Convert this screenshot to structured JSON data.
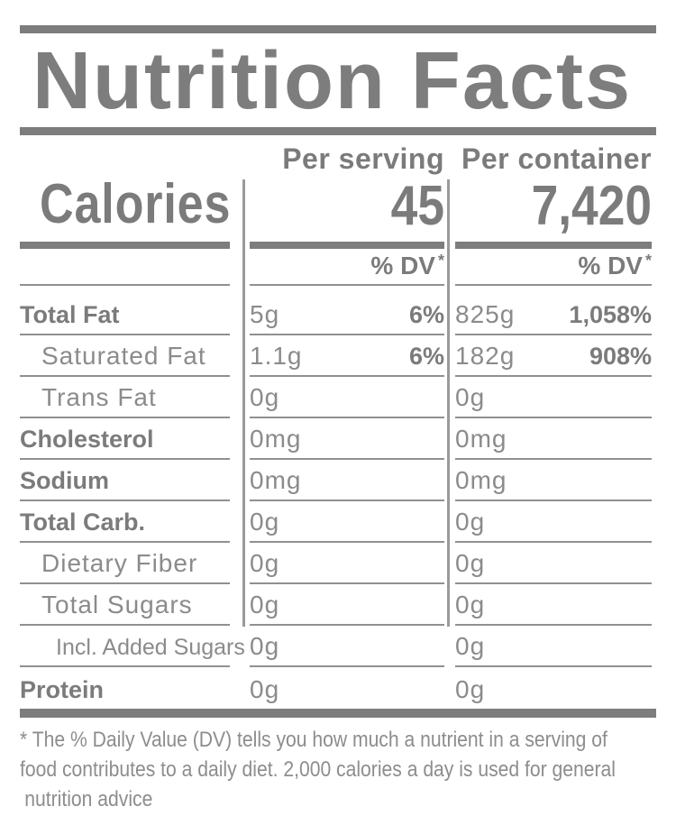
{
  "title": "Nutrition Facts",
  "header": {
    "per_serving": "Per serving",
    "per_container": "Per container"
  },
  "calories": {
    "label": "Calories",
    "per_serving": "45",
    "per_container": "7,420"
  },
  "dv": {
    "label": "% DV",
    "star": "*"
  },
  "rows": [
    {
      "name": "Total Fat",
      "serving_amount": "5g",
      "serving_dv": "6%",
      "container_amount": "825g",
      "container_dv": "1,058%"
    },
    {
      "name": "Saturated Fat",
      "serving_amount": "1.1g",
      "serving_dv": "6%",
      "container_amount": "182g",
      "container_dv": "908%"
    },
    {
      "name": "Trans Fat",
      "serving_amount": "0g",
      "container_amount": "0g"
    },
    {
      "name": "Cholesterol",
      "serving_amount": "0mg",
      "container_amount": "0mg"
    },
    {
      "name": "Sodium",
      "serving_amount": "0mg",
      "container_amount": "0mg"
    },
    {
      "name": "Total Carb.",
      "serving_amount": "0g",
      "container_amount": "0g"
    },
    {
      "name": "Dietary Fiber",
      "serving_amount": "0g",
      "container_amount": "0g"
    },
    {
      "name": "Total Sugars",
      "serving_amount": "0g",
      "container_amount": "0g"
    },
    {
      "name": "Incl. Added Sugars",
      "serving_amount": "0g",
      "container_amount": "0g"
    },
    {
      "name": "Protein",
      "serving_amount": "0g",
      "container_amount": "0g"
    }
  ],
  "footnote_lines": [
    "* The % Daily Value (DV) tells you how much a nutrient in a serving of",
    "food contributes to a daily diet. 2,000 calories a day is used for general",
    "nutrition advice"
  ],
  "colors": {
    "text_bold": "#7b7b7b",
    "text_regular": "#8b8b8b",
    "thick_bar": "#7d7d7d",
    "hairline": "#909090",
    "divider": "#9a9a9a",
    "background": "#ffffff"
  }
}
